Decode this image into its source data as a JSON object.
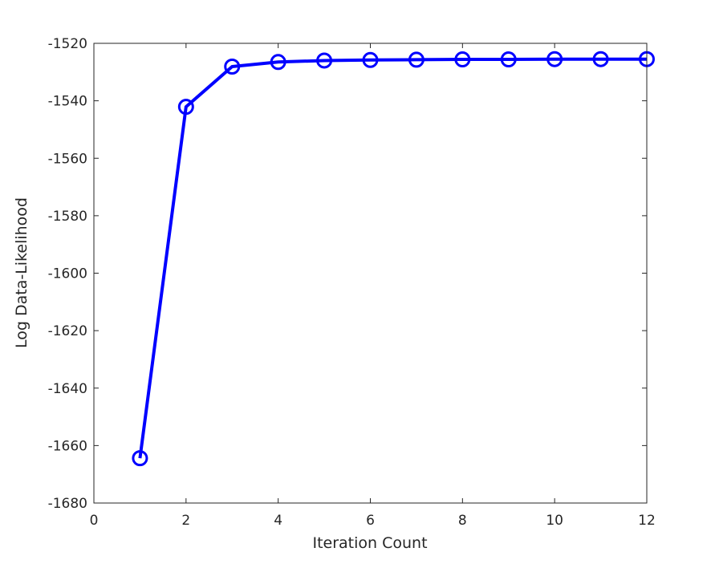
{
  "chart_data": {
    "type": "line",
    "title": "",
    "xlabel": "Iteration Count",
    "ylabel": "Log Data-Likelihood",
    "xlim": [
      0,
      12
    ],
    "ylim": [
      -1680,
      -1520
    ],
    "x_ticks": [
      0,
      2,
      4,
      6,
      8,
      10,
      12
    ],
    "y_ticks": [
      -1520,
      -1540,
      -1560,
      -1580,
      -1600,
      -1620,
      -1640,
      -1660,
      -1680
    ],
    "grid": false,
    "legend": "none",
    "marker": "circle",
    "color": "#0000ff",
    "series": [
      {
        "x": [
          1,
          2,
          3,
          4,
          5,
          6,
          7,
          8,
          9,
          10,
          11,
          12
        ],
        "values": [
          -1664.4,
          -1542.1,
          -1528.1,
          -1526.5,
          -1526.0,
          -1525.8,
          -1525.7,
          -1525.6,
          -1525.6,
          -1525.5,
          -1525.5,
          -1525.5
        ]
      }
    ]
  }
}
